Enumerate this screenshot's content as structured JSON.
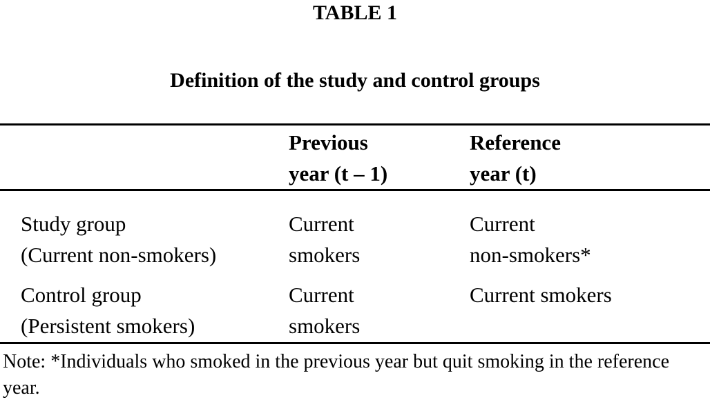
{
  "table_label": "TABLE 1",
  "caption": "Definition of the study and control groups",
  "columns": [
    {
      "line1": "",
      "line2": ""
    },
    {
      "line1": "Previous",
      "line2": "year (t – 1)"
    },
    {
      "line1": "Reference",
      "line2": "year (t)"
    }
  ],
  "rows": [
    {
      "cells": [
        {
          "line1": "Study group",
          "line2": "(Current non-smokers)"
        },
        {
          "line1": "Current",
          "line2": "smokers"
        },
        {
          "line1": "Current",
          "line2": "non-smokers*"
        }
      ]
    },
    {
      "cells": [
        {
          "line1": "Control group",
          "line2": "(Persistent smokers)"
        },
        {
          "line1": "Current",
          "line2": "smokers"
        },
        {
          "line1": "Current smokers",
          "line2": ""
        }
      ]
    }
  ],
  "note": "Note: *Individuals who smoked in the previous year but quit smoking in the reference year."
}
